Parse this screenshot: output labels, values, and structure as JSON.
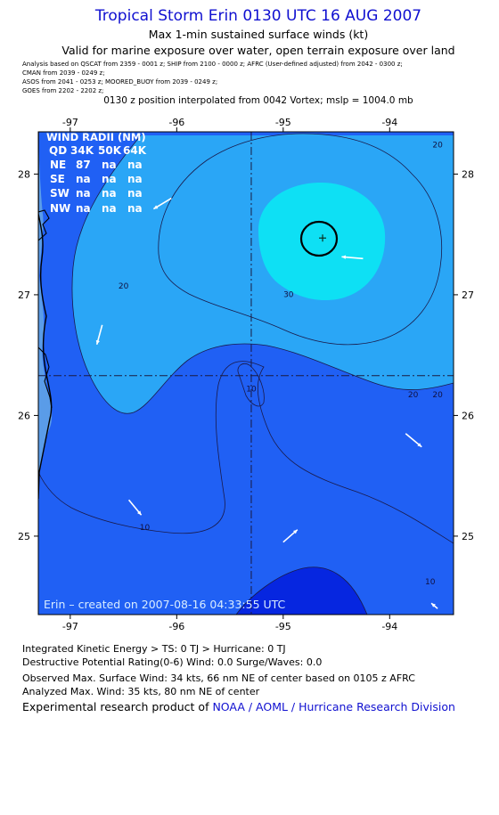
{
  "header": {
    "title": "Tropical Storm Erin 0130 UTC 16 AUG 2007",
    "subtitle1": "Max 1-min sustained surface winds (kt)",
    "subtitle2": "Valid for marine exposure over water, open terrain exposure over land",
    "analysis_lines": [
      "Analysis based on  QSCAT from 2359 - 0001 z;  SHIP from 2100 - 0000 z;  AFRC (User-defined adjusted) from 2042 - 0300 z;",
      "CMAN from 2039 - 0249 z;",
      "ASOS from 2041 - 0253 z;   MOORED_BUOY from 2039 - 0249 z;",
      "GOES from 2202 - 2202 z;"
    ],
    "position_line": "0130 z position interpolated from 0042 Vortex; mslp = 1004.0 mb"
  },
  "chart_data": {
    "type": "contour-map",
    "x_axis": {
      "ticks": [
        -97,
        -96,
        -95,
        -94
      ],
      "tick_labels": [
        "-97",
        "-96",
        "-95",
        "-94"
      ],
      "range": [
        -97.3,
        -93.4
      ]
    },
    "y_axis": {
      "ticks": [
        25,
        26,
        27,
        28
      ],
      "tick_labels": [
        "25",
        "26",
        "27",
        "28"
      ],
      "range": [
        24.35,
        28.35
      ]
    },
    "center": {
      "lon": -94.63,
      "lat": 27.47
    },
    "reference_lines": {
      "lon": -95.3,
      "lat": 26.33
    },
    "contour_levels": [
      10,
      20,
      30
    ],
    "contour_labels": [
      {
        "text": "20",
        "lon": -96.5,
        "lat": 27.05
      },
      {
        "text": "30",
        "lon": -94.95,
        "lat": 26.98
      },
      {
        "text": "10",
        "lon": -95.3,
        "lat": 26.2
      },
      {
        "text": "20",
        "lon": -93.78,
        "lat": 26.15
      },
      {
        "text": "20",
        "lon": -93.55,
        "lat": 26.15
      },
      {
        "text": "10",
        "lon": -96.3,
        "lat": 25.05
      },
      {
        "text": "10",
        "lon": -93.62,
        "lat": 24.6
      },
      {
        "text": "20",
        "lon": -93.55,
        "lat": 28.22
      }
    ],
    "wind_vectors": [
      {
        "lon": -96.7,
        "lat": 26.75,
        "dx": -6,
        "dy": 22
      },
      {
        "lon": -96.05,
        "lat": 27.8,
        "dx": -20,
        "dy": 12
      },
      {
        "lon": -94.25,
        "lat": 27.3,
        "dx": -24,
        "dy": -2
      },
      {
        "lon": -93.85,
        "lat": 25.85,
        "dx": 18,
        "dy": 15
      },
      {
        "lon": -96.45,
        "lat": 25.3,
        "dx": 14,
        "dy": 17
      },
      {
        "lon": -95.0,
        "lat": 24.95,
        "dx": 16,
        "dy": -14
      },
      {
        "lon": -93.55,
        "lat": 24.4,
        "dx": -7,
        "dy": -6
      }
    ],
    "wind_radii_table": {
      "title": "WIND RADII (NM)",
      "columns": [
        "QD",
        "34K",
        "50K",
        "64K"
      ],
      "rows": [
        [
          "NE",
          "87",
          "na",
          "na"
        ],
        [
          "SE",
          "na",
          "na",
          "na"
        ],
        [
          "SW",
          "na",
          "na",
          "na"
        ],
        [
          "NW",
          "na",
          "na",
          "na"
        ]
      ]
    },
    "created_label": "Erin – created on 2007-08-16 04:33:55 UTC",
    "colors": {
      "band_0_10": "#0a3cf0",
      "band_10_20": "#2060f4",
      "band_20_30": "#2aa6f6",
      "band_30_plus": "#0ee0f4",
      "band_south": "#0626e0",
      "land": "#5a9ce8",
      "coastline": "#000000",
      "vector": "#ffffff"
    }
  },
  "footer": {
    "line1": "Integrated Kinetic Energy > TS: 0 TJ   > Hurricane: 0 TJ",
    "line2": "Destructive Potential Rating(0-6)   Wind: 0.0 Surge/Waves: 0.0",
    "line3": "Observed Max. Surface Wind: 34 kts, 66 nm NE of center based on 0105 z AFRC",
    "line4": "Analyzed Max. Wind: 35 kts, 80 nm NE of center",
    "credit_prefix": "Experimental research product of ",
    "credit_org": "NOAA / AOML / Hurricane Research Division"
  }
}
